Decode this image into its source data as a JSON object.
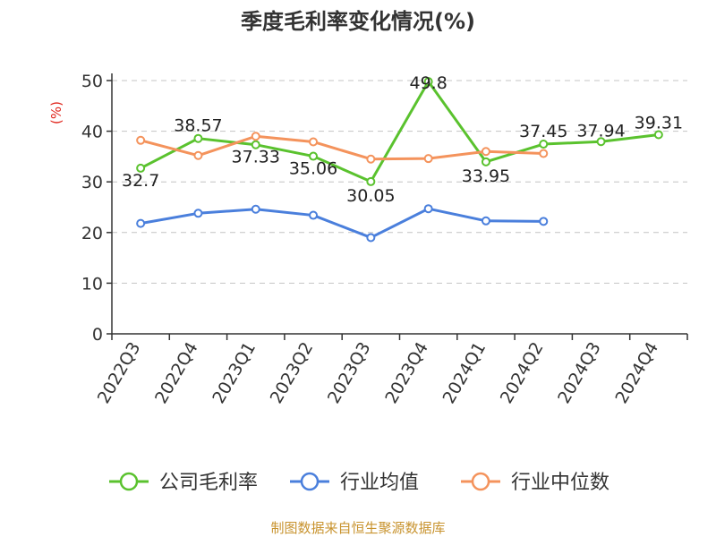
{
  "chart_data": {
    "type": "line",
    "title": "季度毛利率变化情况(%)",
    "ylabel": "(%)",
    "ylim": [
      0,
      50
    ],
    "yticks": [
      0,
      10,
      20,
      30,
      40,
      50
    ],
    "grid": "horizontal-dashed",
    "legend_position": "bottom",
    "categories": [
      "2022Q3",
      "2022Q4",
      "2023Q1",
      "2023Q2",
      "2023Q3",
      "2023Q4",
      "2024Q1",
      "2024Q2",
      "2024Q3",
      "2024Q4"
    ],
    "series": [
      {
        "name": "公司毛利率",
        "color": "#5ac22e",
        "values": [
          32.7,
          38.57,
          37.33,
          35.06,
          30.05,
          49.8,
          33.95,
          37.45,
          37.94,
          39.31
        ],
        "labels": [
          "32.7",
          "38.57",
          "37.33",
          "35.06",
          "30.05",
          "49.8",
          "33.95",
          "37.45",
          "37.94",
          "39.31"
        ]
      },
      {
        "name": "行业均值",
        "color": "#4a7fdc",
        "values": [
          21.8,
          23.8,
          24.6,
          23.4,
          19.0,
          24.7,
          22.3,
          22.2,
          null,
          null
        ]
      },
      {
        "name": "行业中位数",
        "color": "#f4935c",
        "values": [
          38.2,
          35.2,
          39.0,
          37.9,
          34.5,
          34.6,
          36.0,
          35.6,
          null,
          null
        ]
      }
    ]
  },
  "source": "制图数据来自恒生聚源数据库"
}
